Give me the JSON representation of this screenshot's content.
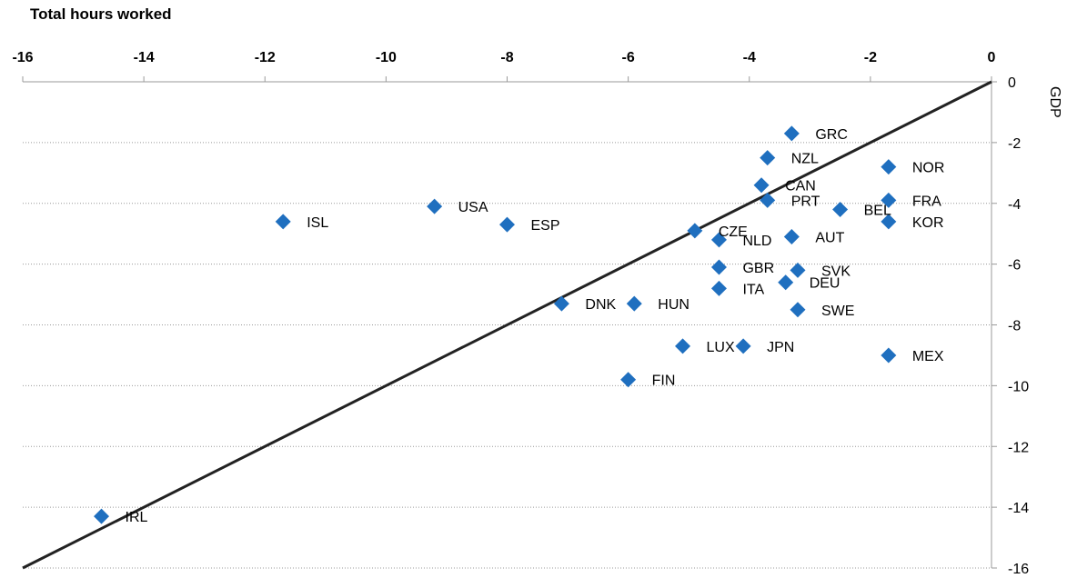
{
  "chart_data": {
    "type": "scatter",
    "title": "Total hours worked",
    "xlabel": "",
    "ylabel": "GDP",
    "xlim": [
      -16,
      0
    ],
    "ylim": [
      -16,
      0
    ],
    "x_ticks": [
      "-16",
      "-14",
      "-12",
      "-10",
      "-8",
      "-6",
      "-4",
      "-2",
      "0"
    ],
    "y_ticks": [
      "0",
      "-2",
      "-4",
      "-6",
      "-8",
      "-10",
      "-12",
      "-14",
      "-16"
    ],
    "x_axis_position": "top",
    "y_axis_position": "right",
    "grid": "horizontal dotted",
    "reference_line": {
      "type": "diagonal",
      "from": [
        -16,
        -16
      ],
      "to": [
        0,
        0
      ]
    },
    "marker_color": "#1f6fbf",
    "points": [
      {
        "label": "GRC",
        "x": -3.3,
        "y": -1.7
      },
      {
        "label": "NZL",
        "x": -3.7,
        "y": -2.5
      },
      {
        "label": "NOR",
        "x": -1.7,
        "y": -2.8
      },
      {
        "label": "CAN",
        "x": -3.8,
        "y": -3.4
      },
      {
        "label": "PRT",
        "x": -3.7,
        "y": -3.9
      },
      {
        "label": "FRA",
        "x": -1.7,
        "y": -3.9
      },
      {
        "label": "BEL",
        "x": -2.5,
        "y": -4.2
      },
      {
        "label": "KOR",
        "x": -1.7,
        "y": -4.6
      },
      {
        "label": "USA",
        "x": -9.2,
        "y": -4.1
      },
      {
        "label": "ISL",
        "x": -11.7,
        "y": -4.6
      },
      {
        "label": "ESP",
        "x": -8.0,
        "y": -4.7
      },
      {
        "label": "CZE",
        "x": -4.9,
        "y": -4.9
      },
      {
        "label": "NLD",
        "x": -4.5,
        "y": -5.2
      },
      {
        "label": "AUT",
        "x": -3.3,
        "y": -5.1
      },
      {
        "label": "GBR",
        "x": -4.5,
        "y": -6.1
      },
      {
        "label": "SVK",
        "x": -3.2,
        "y": -6.2
      },
      {
        "label": "DEU",
        "x": -3.4,
        "y": -6.6
      },
      {
        "label": "ITA",
        "x": -4.5,
        "y": -6.8
      },
      {
        "label": "DNK",
        "x": -7.1,
        "y": -7.3
      },
      {
        "label": "HUN",
        "x": -5.9,
        "y": -7.3
      },
      {
        "label": "SWE",
        "x": -3.2,
        "y": -7.5
      },
      {
        "label": "LUX",
        "x": -5.1,
        "y": -8.7
      },
      {
        "label": "JPN",
        "x": -4.1,
        "y": -8.7
      },
      {
        "label": "MEX",
        "x": -1.7,
        "y": -9.0
      },
      {
        "label": "FIN",
        "x": -6.0,
        "y": -9.8
      },
      {
        "label": "IRL",
        "x": -14.7,
        "y": -14.3
      }
    ]
  }
}
